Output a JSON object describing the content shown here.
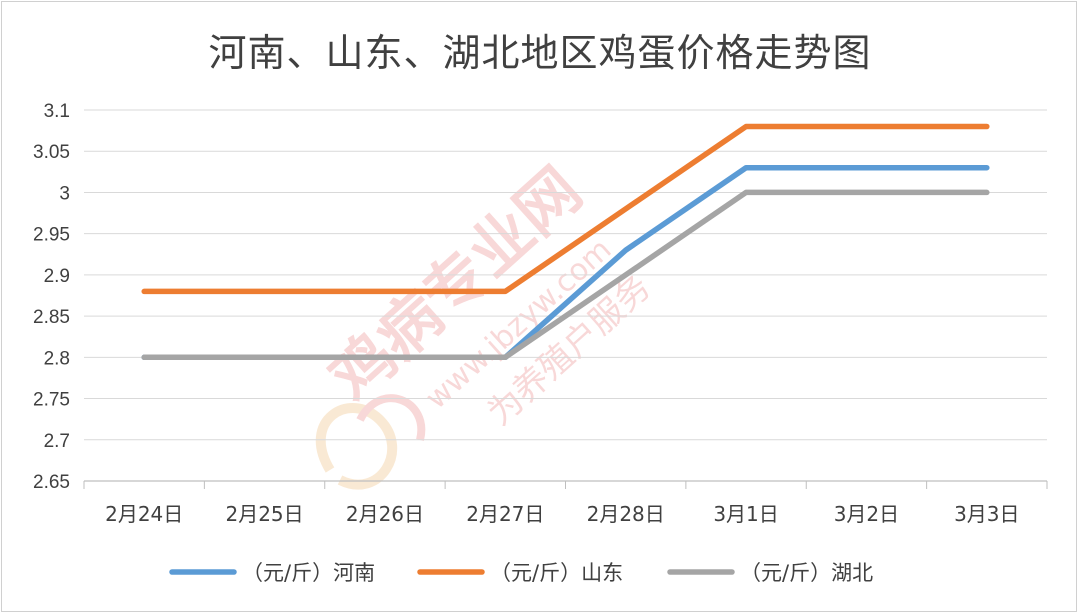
{
  "chart_data": {
    "type": "line",
    "title": "河南、山东、湖北地区鸡蛋价格走势图",
    "categories": [
      "2月24日",
      "2月25日",
      "2月26日",
      "2月27日",
      "2月28日",
      "3月1日",
      "3月2日",
      "3月3日"
    ],
    "ylim": [
      2.65,
      3.1
    ],
    "yticks": [
      "3.1",
      "3.05",
      "3",
      "2.95",
      "2.9",
      "2.85",
      "2.8",
      "2.75",
      "2.7",
      "2.65"
    ],
    "grid": true,
    "legend_position": "bottom",
    "series": [
      {
        "name": "（元/斤）河南",
        "color": "#5B9BD5",
        "values": [
          2.8,
          2.8,
          2.8,
          2.8,
          2.93,
          3.03,
          3.03,
          3.03
        ]
      },
      {
        "name": "（元/斤）山东",
        "color": "#ED7D31",
        "values": [
          2.88,
          2.88,
          2.88,
          2.88,
          2.98,
          3.08,
          3.08,
          3.08
        ]
      },
      {
        "name": "（元/斤）湖北",
        "color": "#A5A5A5",
        "values": [
          2.8,
          2.8,
          2.8,
          2.8,
          2.9,
          3.0,
          3.0,
          3.0
        ]
      }
    ]
  },
  "watermark": {
    "brand": "鸡病专业网",
    "url": "www.jbzyw.com",
    "slogan": "为养殖户服务"
  }
}
